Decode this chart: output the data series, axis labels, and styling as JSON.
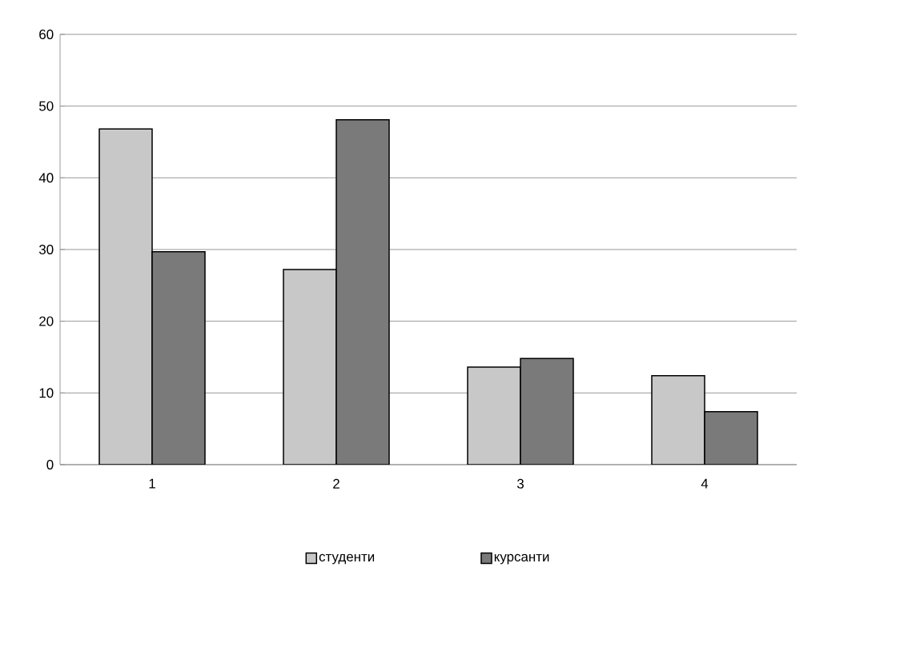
{
  "chart_data": {
    "type": "bar",
    "categories": [
      "1",
      "2",
      "3",
      "4"
    ],
    "series": [
      {
        "name": "студенти",
        "color": "#c8c8c8",
        "values": [
          46.8,
          27.2,
          13.6,
          12.4
        ]
      },
      {
        "name": "курсанти",
        "color": "#7a7a7a",
        "values": [
          29.7,
          48.1,
          14.8,
          7.4
        ]
      }
    ],
    "ylim": [
      0,
      60
    ],
    "yticks": [
      0,
      10,
      20,
      30,
      40,
      50,
      60
    ],
    "grid": "y",
    "legend": "bottom"
  }
}
